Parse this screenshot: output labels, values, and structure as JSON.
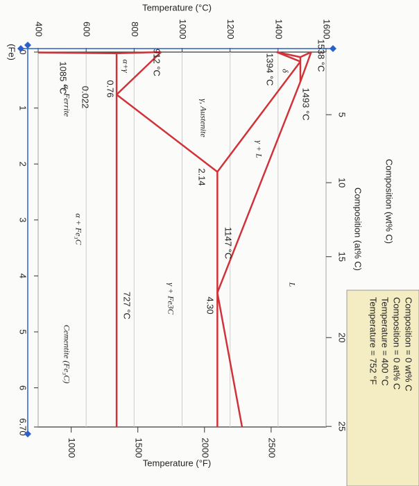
{
  "chart_data": {
    "type": "phase-diagram",
    "temperature_c": {
      "label": "Temperature (°C)",
      "lim": [
        400,
        1600
      ],
      "ticks": [
        400,
        600,
        800,
        1000,
        1200,
        1400,
        1600
      ]
    },
    "temperature_f": {
      "label": "Temperature (°F)",
      "ticks": [
        1000,
        1500,
        2000,
        2500
      ]
    },
    "composition_wt": {
      "label": "Composition (wt% C)",
      "lim": [
        0,
        6.7
      ],
      "ticks": [
        0,
        1,
        2,
        3,
        4,
        5,
        6,
        {
          "value": 6.7,
          "label": "6.70"
        }
      ]
    },
    "composition_at": {
      "label": "Composition (at% C)",
      "ticks": [
        5,
        10,
        15,
        20,
        25
      ]
    },
    "fe_label": "(Fe)",
    "color": "#d0323a",
    "boundaries": [
      {
        "x": [
          0,
          0.53,
          4.3,
          6.7
        ],
        "y": [
          1538,
          1493,
          1147,
          1250
        ]
      },
      {
        "x": [
          0,
          0.09
        ],
        "y": [
          1538,
          1493
        ]
      },
      {
        "x": [
          0.09,
          0.53
        ],
        "y": [
          1493,
          1493
        ]
      },
      {
        "x": [
          0,
          0.09
        ],
        "y": [
          1394,
          1493
        ]
      },
      {
        "x": [
          0,
          0.17
        ],
        "y": [
          1394,
          1493
        ]
      },
      {
        "x": [
          0.17,
          2.14
        ],
        "y": [
          1493,
          1147
        ]
      },
      {
        "x": [
          2.14,
          6.7
        ],
        "y": [
          1147,
          1147
        ]
      },
      {
        "x": [
          2.14,
          0.76
        ],
        "y": [
          1147,
          727
        ]
      },
      {
        "x": [
          0,
          0.76
        ],
        "y": [
          912,
          727
        ]
      },
      {
        "x": [
          0,
          0.022
        ],
        "y": [
          912,
          727
        ]
      },
      {
        "x": [
          0.022,
          0.008
        ],
        "y": [
          727,
          400
        ]
      },
      {
        "x": [
          0.022,
          6.7
        ],
        "y": [
          727,
          727
        ]
      }
    ],
    "point_labels": [
      "1538 °C",
      "1493 °C",
      "1394 °C",
      "912 °C",
      "0.76",
      "0.022",
      "1085 °C",
      "1147 °C",
      "2.14",
      "4.30",
      "727 °C"
    ],
    "region_labels": [
      "δ",
      "γ + L",
      "L",
      "γ, Austenite",
      "γ + Fe3C",
      "α + Fe₃C",
      "α, Ferrite",
      "α+γ",
      "Cementite (Fe₃C)"
    ],
    "info_box": [
      "Composition = 0 wt% C",
      "Composition = 0 at% C",
      "Temperature = 400 °C",
      "Temperature = 752 °F"
    ]
  }
}
